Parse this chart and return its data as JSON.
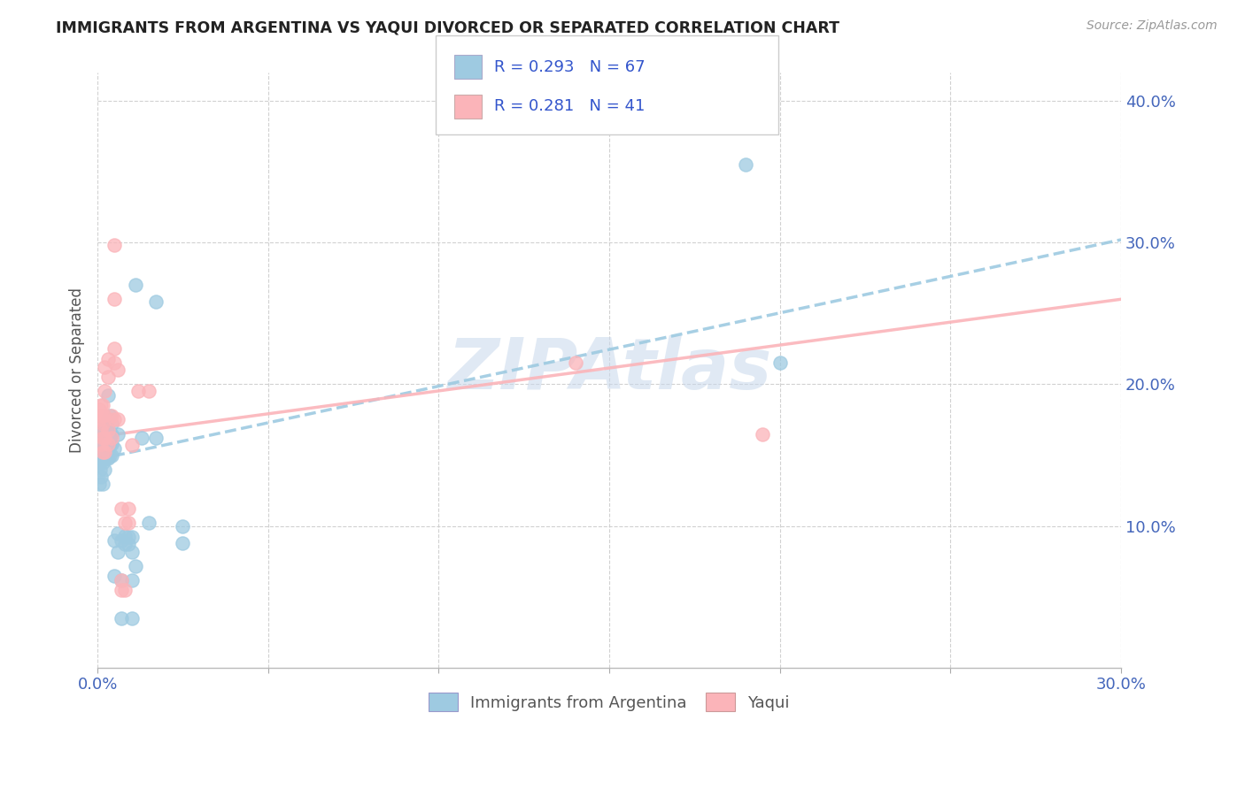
{
  "title": "IMMIGRANTS FROM ARGENTINA VS YAQUI DIVORCED OR SEPARATED CORRELATION CHART",
  "source": "Source: ZipAtlas.com",
  "ylabel": "Divorced or Separated",
  "xlim": [
    0.0,
    0.3
  ],
  "ylim": [
    0.0,
    0.42
  ],
  "x_ticks": [
    0.0,
    0.05,
    0.1,
    0.15,
    0.2,
    0.25,
    0.3
  ],
  "y_ticks_right": [
    0.1,
    0.2,
    0.3,
    0.4
  ],
  "y_tick_labels_right": [
    "10.0%",
    "20.0%",
    "30.0%",
    "40.0%"
  ],
  "legend_label1": "Immigrants from Argentina",
  "legend_label2": "Yaqui",
  "color_blue": "#9ecae1",
  "color_pink": "#fbb4b9",
  "watermark": "ZIPAtlas",
  "blue_scatter": [
    [
      0.0005,
      0.13
    ],
    [
      0.0005,
      0.145
    ],
    [
      0.0005,
      0.152
    ],
    [
      0.0005,
      0.158
    ],
    [
      0.0008,
      0.14
    ],
    [
      0.0008,
      0.148
    ],
    [
      0.0008,
      0.155
    ],
    [
      0.0008,
      0.162
    ],
    [
      0.001,
      0.135
    ],
    [
      0.001,
      0.148
    ],
    [
      0.001,
      0.155
    ],
    [
      0.001,
      0.16
    ],
    [
      0.001,
      0.165
    ],
    [
      0.0015,
      0.13
    ],
    [
      0.0015,
      0.145
    ],
    [
      0.0015,
      0.155
    ],
    [
      0.0015,
      0.162
    ],
    [
      0.0015,
      0.168
    ],
    [
      0.002,
      0.14
    ],
    [
      0.002,
      0.15
    ],
    [
      0.002,
      0.158
    ],
    [
      0.002,
      0.165
    ],
    [
      0.002,
      0.17
    ],
    [
      0.0025,
      0.148
    ],
    [
      0.0025,
      0.155
    ],
    [
      0.0025,
      0.162
    ],
    [
      0.003,
      0.148
    ],
    [
      0.003,
      0.155
    ],
    [
      0.003,
      0.162
    ],
    [
      0.003,
      0.168
    ],
    [
      0.003,
      0.175
    ],
    [
      0.003,
      0.192
    ],
    [
      0.0035,
      0.15
    ],
    [
      0.0035,
      0.158
    ],
    [
      0.0035,
      0.165
    ],
    [
      0.0035,
      0.178
    ],
    [
      0.004,
      0.15
    ],
    [
      0.004,
      0.158
    ],
    [
      0.004,
      0.165
    ],
    [
      0.004,
      0.172
    ],
    [
      0.005,
      0.155
    ],
    [
      0.005,
      0.065
    ],
    [
      0.005,
      0.09
    ],
    [
      0.006,
      0.082
    ],
    [
      0.006,
      0.095
    ],
    [
      0.006,
      0.165
    ],
    [
      0.007,
      0.035
    ],
    [
      0.007,
      0.062
    ],
    [
      0.007,
      0.09
    ],
    [
      0.008,
      0.087
    ],
    [
      0.008,
      0.093
    ],
    [
      0.009,
      0.087
    ],
    [
      0.009,
      0.092
    ],
    [
      0.01,
      0.035
    ],
    [
      0.01,
      0.062
    ],
    [
      0.01,
      0.082
    ],
    [
      0.01,
      0.092
    ],
    [
      0.011,
      0.27
    ],
    [
      0.011,
      0.072
    ],
    [
      0.013,
      0.162
    ],
    [
      0.015,
      0.102
    ],
    [
      0.017,
      0.258
    ],
    [
      0.017,
      0.162
    ],
    [
      0.025,
      0.1
    ],
    [
      0.025,
      0.088
    ],
    [
      0.19,
      0.355
    ],
    [
      0.2,
      0.215
    ]
  ],
  "pink_scatter": [
    [
      0.0005,
      0.175
    ],
    [
      0.0005,
      0.182
    ],
    [
      0.001,
      0.158
    ],
    [
      0.001,
      0.168
    ],
    [
      0.001,
      0.178
    ],
    [
      0.001,
      0.185
    ],
    [
      0.0015,
      0.152
    ],
    [
      0.0015,
      0.162
    ],
    [
      0.0015,
      0.172
    ],
    [
      0.0015,
      0.178
    ],
    [
      0.0015,
      0.185
    ],
    [
      0.002,
      0.152
    ],
    [
      0.002,
      0.162
    ],
    [
      0.002,
      0.178
    ],
    [
      0.002,
      0.195
    ],
    [
      0.002,
      0.212
    ],
    [
      0.003,
      0.158
    ],
    [
      0.003,
      0.168
    ],
    [
      0.003,
      0.205
    ],
    [
      0.003,
      0.218
    ],
    [
      0.004,
      0.162
    ],
    [
      0.004,
      0.178
    ],
    [
      0.005,
      0.175
    ],
    [
      0.005,
      0.215
    ],
    [
      0.005,
      0.225
    ],
    [
      0.005,
      0.26
    ],
    [
      0.005,
      0.298
    ],
    [
      0.006,
      0.175
    ],
    [
      0.006,
      0.21
    ],
    [
      0.007,
      0.055
    ],
    [
      0.007,
      0.062
    ],
    [
      0.007,
      0.112
    ],
    [
      0.008,
      0.055
    ],
    [
      0.008,
      0.102
    ],
    [
      0.009,
      0.102
    ],
    [
      0.009,
      0.112
    ],
    [
      0.01,
      0.157
    ],
    [
      0.012,
      0.195
    ],
    [
      0.015,
      0.195
    ],
    [
      0.14,
      0.215
    ],
    [
      0.195,
      0.165
    ]
  ],
  "blue_trend": [
    0.0,
    0.147,
    0.3,
    0.302
  ],
  "pink_trend": [
    0.0,
    0.163,
    0.3,
    0.26
  ]
}
